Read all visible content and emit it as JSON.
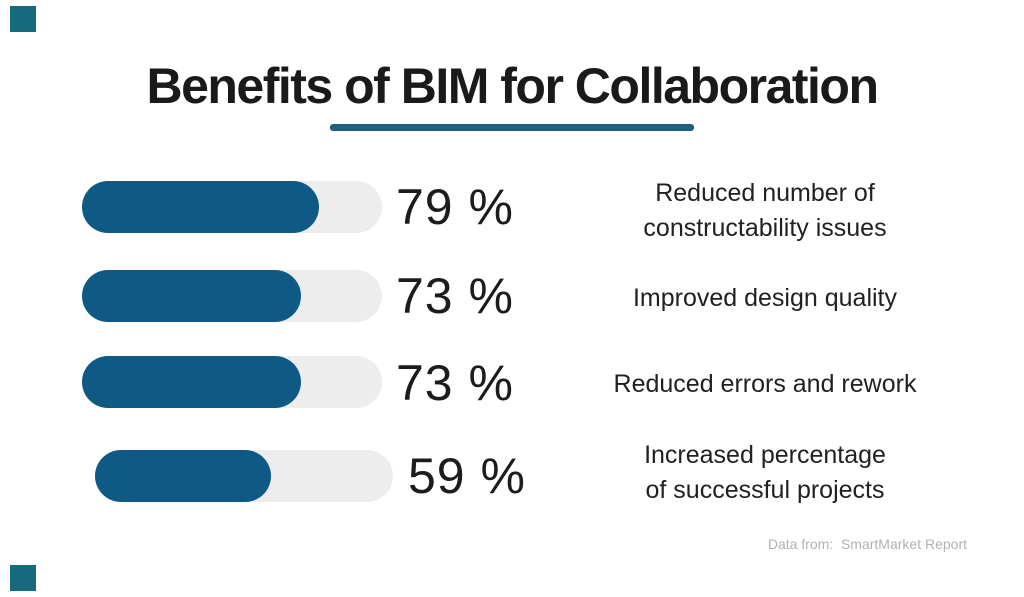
{
  "title": {
    "text": "Benefits of BIM for Collaboration"
  },
  "attribution": {
    "text": "Data from:  SmartMarket Report"
  },
  "colors": {
    "title_text": "#1a1a1a",
    "underline": "#20607f",
    "bar_fill": "#0f5a84",
    "bar_track": "#ededee",
    "percent_text": "#1c1c1c",
    "label_text": "#212121",
    "attribution_text": "#b2b2b2",
    "corner_square": "#17697e"
  },
  "chart_data": {
    "type": "bar",
    "orientation": "horizontal",
    "title": "Benefits of BIM for Collaboration",
    "unit": "%",
    "xlim": [
      0,
      100
    ],
    "grid": false,
    "legend": "none",
    "categories": [
      "Reduced number of constructability issues",
      "Improved design quality",
      "Reduced errors and rework",
      "Increased percentage of successful projects"
    ],
    "values": [
      79,
      73,
      73,
      59
    ],
    "rows": [
      {
        "value": 79,
        "percent_label": "79 %",
        "label_lines": [
          "Reduced number of",
          "constructability issues"
        ]
      },
      {
        "value": 73,
        "percent_label": "73 %",
        "label_lines": [
          "Improved design quality"
        ]
      },
      {
        "value": 73,
        "percent_label": "73 %",
        "label_lines": [
          "Reduced errors and rework"
        ]
      },
      {
        "value": 59,
        "percent_label": "59 %",
        "label_lines": [
          "Increased percentage",
          "of successful projects"
        ]
      }
    ]
  }
}
